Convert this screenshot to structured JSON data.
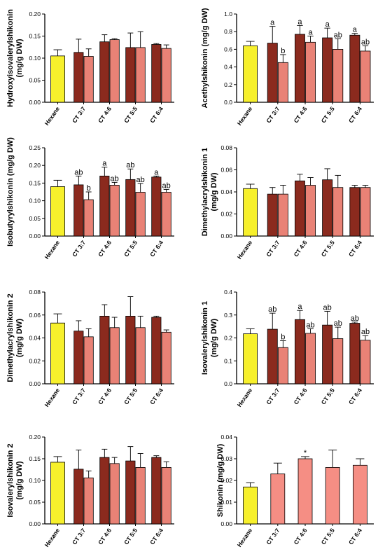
{
  "colors": {
    "hexane": "#f7f02c",
    "ct_dark": "#8b2a1e",
    "ct_light": "#e98276",
    "shikonin_bar": "#f58e84",
    "axis": "#000000"
  },
  "chart_data": [
    {
      "type": "bar",
      "ylabel": "Hydroxyisovalerylshikonin\n(mg/g DW)",
      "ylim": [
        0,
        0.2
      ],
      "yticks": [
        "0.00",
        "0.05",
        "0.10",
        "0.15",
        "0.20"
      ],
      "categories": [
        "Hexane",
        "CT 3:7",
        "CT 4:6",
        "CT 5:5",
        "CT 6:4"
      ],
      "bars": [
        [
          0.105
        ],
        [
          0.113,
          0.104
        ],
        [
          0.137,
          0.142
        ],
        [
          0.124,
          0.124
        ],
        [
          0.131,
          0.122
        ]
      ],
      "errors": [
        [
          0.014
        ],
        [
          0.03,
          0.017
        ],
        [
          0.016,
          0.002
        ],
        [
          0.033,
          0.036
        ],
        [
          0.002,
          0.008
        ]
      ],
      "labels": [
        [
          ""
        ],
        [
          "",
          ""
        ],
        [
          "",
          ""
        ],
        [
          "",
          ""
        ],
        [
          "",
          ""
        ]
      ]
    },
    {
      "type": "bar",
      "ylabel": "Acethylshikonin (mg/g DW)",
      "ylim": [
        0,
        1.0
      ],
      "yticks": [
        "0.0",
        "0.2",
        "0.4",
        "0.6",
        "0.8",
        "1.0"
      ],
      "categories": [
        "Hexane",
        "CT 3:7",
        "CT 4:6",
        "CT 5:5",
        "CT 6:4"
      ],
      "bars": [
        [
          0.64
        ],
        [
          0.67,
          0.45
        ],
        [
          0.77,
          0.68
        ],
        [
          0.73,
          0.6
        ],
        [
          0.76,
          0.58
        ]
      ],
      "errors": [
        [
          0.05
        ],
        [
          0.19,
          0.09
        ],
        [
          0.1,
          0.07
        ],
        [
          0.11,
          0.12
        ],
        [
          0.02,
          0.06
        ]
      ],
      "labels": [
        [
          ""
        ],
        [
          "a",
          "b"
        ],
        [
          "a",
          "a"
        ],
        [
          "a",
          "ab"
        ],
        [
          "a",
          "ab"
        ]
      ]
    },
    {
      "type": "bar",
      "ylabel": "Isobutyrylshikonin (mg/g DW)",
      "ylim": [
        0,
        0.25
      ],
      "yticks": [
        "0.00",
        "0.05",
        "0.10",
        "0.15",
        "0.20",
        "0.25"
      ],
      "categories": [
        "Hexane",
        "CT 3:7",
        "CT 4:6",
        "CT 5:5",
        "CT 6:4"
      ],
      "bars": [
        [
          0.14
        ],
        [
          0.145,
          0.103
        ],
        [
          0.17,
          0.144
        ],
        [
          0.16,
          0.124
        ],
        [
          0.167,
          0.124
        ]
      ],
      "errors": [
        [
          0.018
        ],
        [
          0.025,
          0.022
        ],
        [
          0.025,
          0.008
        ],
        [
          0.03,
          0.025
        ],
        [
          0.003,
          0.008
        ]
      ],
      "labels": [
        [
          ""
        ],
        [
          "ab",
          "b"
        ],
        [
          "a",
          "ab"
        ],
        [
          "ab",
          "ab"
        ],
        [
          "a",
          "ab"
        ]
      ]
    },
    {
      "type": "bar",
      "ylabel": "Dimethylacrylshikonin 1\n(mg/g DW)",
      "ylim": [
        0,
        0.08
      ],
      "yticks": [
        "0.00",
        "0.02",
        "0.04",
        "0.06",
        "0.08"
      ],
      "categories": [
        "Hexane",
        "CT 3:7",
        "CT 4:6",
        "CT 5:5",
        "CT 6:4"
      ],
      "bars": [
        [
          0.043
        ],
        [
          0.038,
          0.038
        ],
        [
          0.05,
          0.046
        ],
        [
          0.051,
          0.044
        ],
        [
          0.044,
          0.044
        ]
      ],
      "errors": [
        [
          0.004
        ],
        [
          0.006,
          0.008
        ],
        [
          0.006,
          0.007
        ],
        [
          0.01,
          0.011
        ],
        [
          0.002,
          0.002
        ]
      ],
      "labels": [
        [
          ""
        ],
        [
          "",
          ""
        ],
        [
          "",
          ""
        ],
        [
          "",
          ""
        ],
        [
          "",
          ""
        ]
      ]
    },
    {
      "type": "bar",
      "ylabel": "Dimethylacrylshikonin 2\n(mg/g DW)",
      "ylim": [
        0,
        0.08
      ],
      "yticks": [
        "0.00",
        "0.02",
        "0.04",
        "0.06",
        "0.08"
      ],
      "categories": [
        "Hexane",
        "CT 3:7",
        "CT 4:6",
        "CT 5:5",
        "CT 6:4"
      ],
      "bars": [
        [
          0.053
        ],
        [
          0.046,
          0.041
        ],
        [
          0.059,
          0.049
        ],
        [
          0.059,
          0.049
        ],
        [
          0.058,
          0.045
        ]
      ],
      "errors": [
        [
          0.008
        ],
        [
          0.009,
          0.007
        ],
        [
          0.01,
          0.009
        ],
        [
          0.017,
          0.01
        ],
        [
          0.001,
          0.002
        ]
      ],
      "labels": [
        [
          ""
        ],
        [
          "",
          ""
        ],
        [
          "",
          ""
        ],
        [
          "",
          ""
        ],
        [
          "",
          ""
        ]
      ]
    },
    {
      "type": "bar",
      "ylabel": "Isovalerylshikonin 1\n(mg/g DW)",
      "ylim": [
        0,
        0.4
      ],
      "yticks": [
        "0.0",
        "0.1",
        "0.2",
        "0.3",
        "0.4"
      ],
      "categories": [
        "Hexane",
        "CT 3:7",
        "CT 4:6",
        "CT 5:5",
        "CT 6:4"
      ],
      "bars": [
        [
          0.218
        ],
        [
          0.238,
          0.158
        ],
        [
          0.28,
          0.22
        ],
        [
          0.256,
          0.197
        ],
        [
          0.264,
          0.19
        ]
      ],
      "errors": [
        [
          0.022
        ],
        [
          0.07,
          0.03
        ],
        [
          0.04,
          0.02
        ],
        [
          0.06,
          0.05
        ],
        [
          0.005,
          0.02
        ]
      ],
      "labels": [
        [
          ""
        ],
        [
          "ab",
          "b"
        ],
        [
          "a",
          "ab"
        ],
        [
          "ab",
          "ab"
        ],
        [
          "ab",
          "ab"
        ]
      ]
    },
    {
      "type": "bar",
      "ylabel": "Isovalerylshikonin 2\n(mg/g DW)",
      "ylim": [
        0,
        0.2
      ],
      "yticks": [
        "0.00",
        "0.05",
        "0.10",
        "0.15",
        "0.20"
      ],
      "categories": [
        "Hexane",
        "CT 3:7",
        "CT 4:6",
        "CT 5:5",
        "CT 6:4"
      ],
      "bars": [
        [
          0.142
        ],
        [
          0.126,
          0.106
        ],
        [
          0.153,
          0.139
        ],
        [
          0.145,
          0.13
        ],
        [
          0.153,
          0.13
        ]
      ],
      "errors": [
        [
          0.013
        ],
        [
          0.044,
          0.016
        ],
        [
          0.019,
          0.014
        ],
        [
          0.033,
          0.032
        ],
        [
          0.004,
          0.013
        ]
      ],
      "labels": [
        [
          ""
        ],
        [
          "",
          ""
        ],
        [
          "",
          ""
        ],
        [
          "",
          ""
        ],
        [
          "",
          ""
        ]
      ]
    },
    {
      "type": "bar",
      "ylabel": "Shikonin (mg/g DW)",
      "ylim": [
        0,
        0.04
      ],
      "yticks": [
        "0.00",
        "0.01",
        "0.02",
        "0.03",
        "0.04"
      ],
      "categories": [
        "Hexane",
        "CT 3:7",
        "CT 4:6",
        "CT 5:5",
        "CT 6:4"
      ],
      "bars": [
        [
          0.017
        ],
        [
          0.023
        ],
        [
          0.03
        ],
        [
          0.026
        ],
        [
          0.027
        ]
      ],
      "errors": [
        [
          0.002
        ],
        [
          0.005
        ],
        [
          0.001
        ],
        [
          0.008
        ],
        [
          0.003
        ]
      ],
      "labels": [
        [
          ""
        ],
        [
          ""
        ],
        [
          "*"
        ],
        [
          ""
        ],
        [
          ""
        ]
      ]
    }
  ]
}
